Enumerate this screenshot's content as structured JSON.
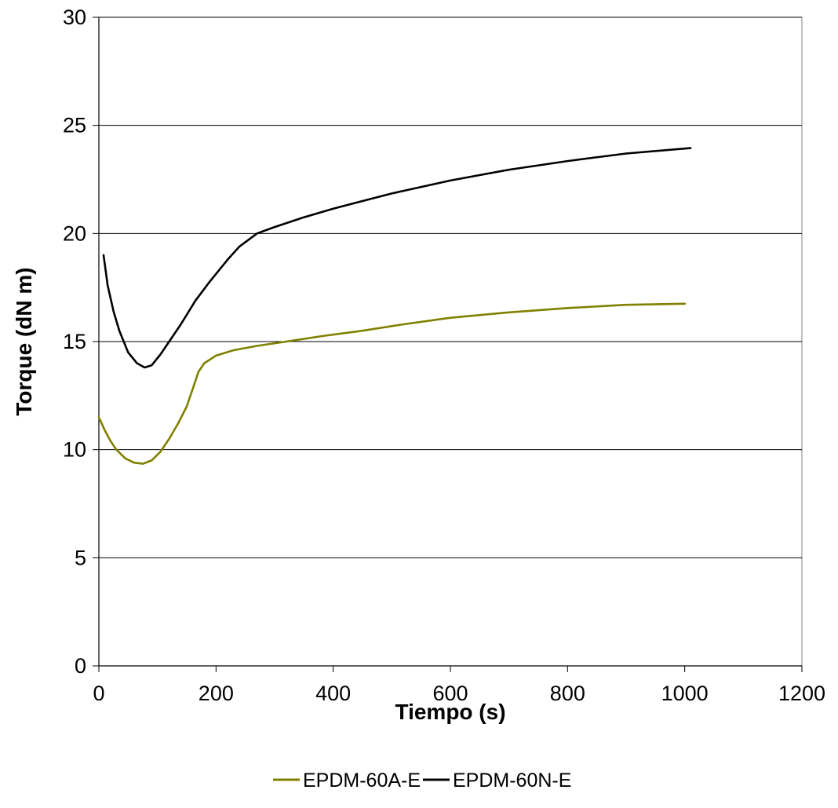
{
  "chart_data": {
    "type": "line",
    "title": "",
    "xlabel": "Tiempo (s)",
    "ylabel": "Torque (dN m)",
    "xlim": [
      0,
      1200
    ],
    "ylim": [
      0,
      30
    ],
    "xticks": [
      0,
      200,
      400,
      600,
      800,
      1000,
      1200
    ],
    "yticks": [
      0,
      5,
      10,
      15,
      20,
      25,
      30
    ],
    "grid": "horizontal",
    "legend_position": "bottom",
    "series": [
      {
        "name": "EPDM-60A-E",
        "color": "#808000",
        "points": [
          [
            0,
            11.5
          ],
          [
            10,
            10.9
          ],
          [
            20,
            10.4
          ],
          [
            30,
            10.0
          ],
          [
            45,
            9.6
          ],
          [
            60,
            9.4
          ],
          [
            75,
            9.35
          ],
          [
            90,
            9.5
          ],
          [
            105,
            9.9
          ],
          [
            120,
            10.5
          ],
          [
            135,
            11.2
          ],
          [
            150,
            12.0
          ],
          [
            160,
            12.8
          ],
          [
            170,
            13.6
          ],
          [
            180,
            14.0
          ],
          [
            200,
            14.35
          ],
          [
            230,
            14.6
          ],
          [
            270,
            14.8
          ],
          [
            320,
            15.0
          ],
          [
            380,
            15.25
          ],
          [
            450,
            15.5
          ],
          [
            520,
            15.8
          ],
          [
            600,
            16.1
          ],
          [
            700,
            16.35
          ],
          [
            800,
            16.55
          ],
          [
            900,
            16.7
          ],
          [
            1000,
            16.75
          ]
        ]
      },
      {
        "name": "EPDM-60N-E",
        "color": "#000000",
        "points": [
          [
            8,
            19.0
          ],
          [
            15,
            17.6
          ],
          [
            25,
            16.4
          ],
          [
            35,
            15.5
          ],
          [
            50,
            14.5
          ],
          [
            65,
            14.0
          ],
          [
            78,
            13.8
          ],
          [
            90,
            13.9
          ],
          [
            105,
            14.4
          ],
          [
            120,
            15.0
          ],
          [
            140,
            15.8
          ],
          [
            165,
            16.9
          ],
          [
            190,
            17.8
          ],
          [
            220,
            18.8
          ],
          [
            240,
            19.4
          ],
          [
            270,
            20.0
          ],
          [
            300,
            20.3
          ],
          [
            350,
            20.75
          ],
          [
            400,
            21.15
          ],
          [
            450,
            21.5
          ],
          [
            500,
            21.85
          ],
          [
            600,
            22.45
          ],
          [
            700,
            22.95
          ],
          [
            800,
            23.35
          ],
          [
            900,
            23.7
          ],
          [
            1010,
            23.95
          ]
        ]
      }
    ]
  }
}
